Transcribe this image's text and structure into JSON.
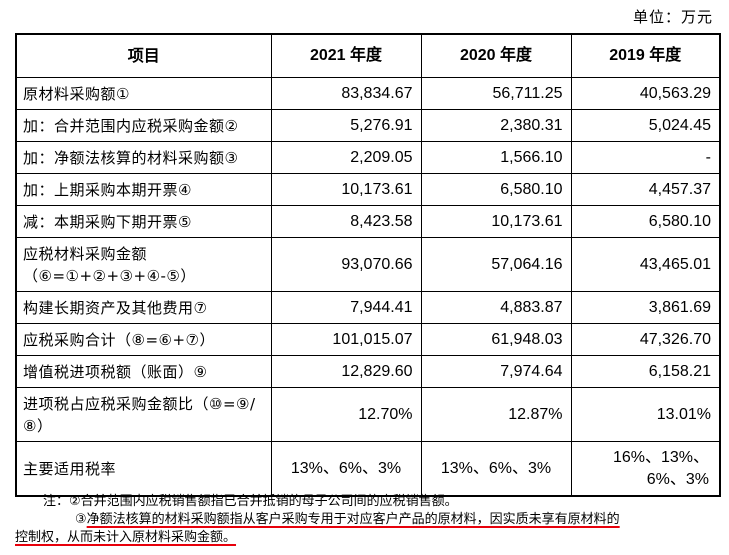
{
  "unit_label": "单位：万元",
  "table": {
    "headers": [
      "项目",
      "2021 年度",
      "2020 年度",
      "2019 年度"
    ],
    "rows": [
      {
        "item": "原材料采购额①",
        "y2021": "83,834.67",
        "y2020": "56,711.25",
        "y2019": "40,563.29"
      },
      {
        "item": "加：合并范围内应税采购金额②",
        "y2021": "5,276.91",
        "y2020": "2,380.31",
        "y2019": "5,024.45"
      },
      {
        "item": "加：净额法核算的材料采购额③",
        "y2021": "2,209.05",
        "y2020": "1,566.10",
        "y2019": "-"
      },
      {
        "item": "加：上期采购本期开票④",
        "y2021": "10,173.61",
        "y2020": "6,580.10",
        "y2019": "4,457.37"
      },
      {
        "item": "减：本期采购下期开票⑤",
        "y2021": "8,423.58",
        "y2020": "10,173.61",
        "y2019": "6,580.10"
      },
      {
        "item": "应税材料采购金额（⑥=①+②+③+④-⑤）",
        "y2021": "93,070.66",
        "y2020": "57,064.16",
        "y2019": "43,465.01"
      },
      {
        "item": "构建长期资产及其他费用⑦",
        "y2021": "7,944.41",
        "y2020": "4,883.87",
        "y2019": "3,861.69"
      },
      {
        "item": "应税采购合计（⑧=⑥+⑦）",
        "y2021": "101,015.07",
        "y2020": "61,948.03",
        "y2019": "47,326.70"
      },
      {
        "item": "增值税进项税额（账面）⑨",
        "y2021": "12,829.60",
        "y2020": "7,974.64",
        "y2019": "6,158.21"
      },
      {
        "item": "进项税占应税采购金额比（⑩=⑨/⑧）",
        "y2021": "12.70%",
        "y2020": "12.87%",
        "y2019": "13.01%"
      },
      {
        "item": "主要适用税率",
        "y2021": "13%、6%、3%",
        "y2020": "13%、6%、3%",
        "y2019": "16%、13%、6%、3%"
      }
    ]
  },
  "notes": {
    "note1": "注：②合并范围内应税销售额指已合并抵销的母子公司间的应税销售额。",
    "note2_prefix": "③",
    "note2_highlight_1": "净额法核算的材料采购额指从客户采购专用于对应客户产品的原材料，因实质未享有原材料的",
    "note2_highlight_2": "控制权，从而未计入原材料采购金额。"
  }
}
